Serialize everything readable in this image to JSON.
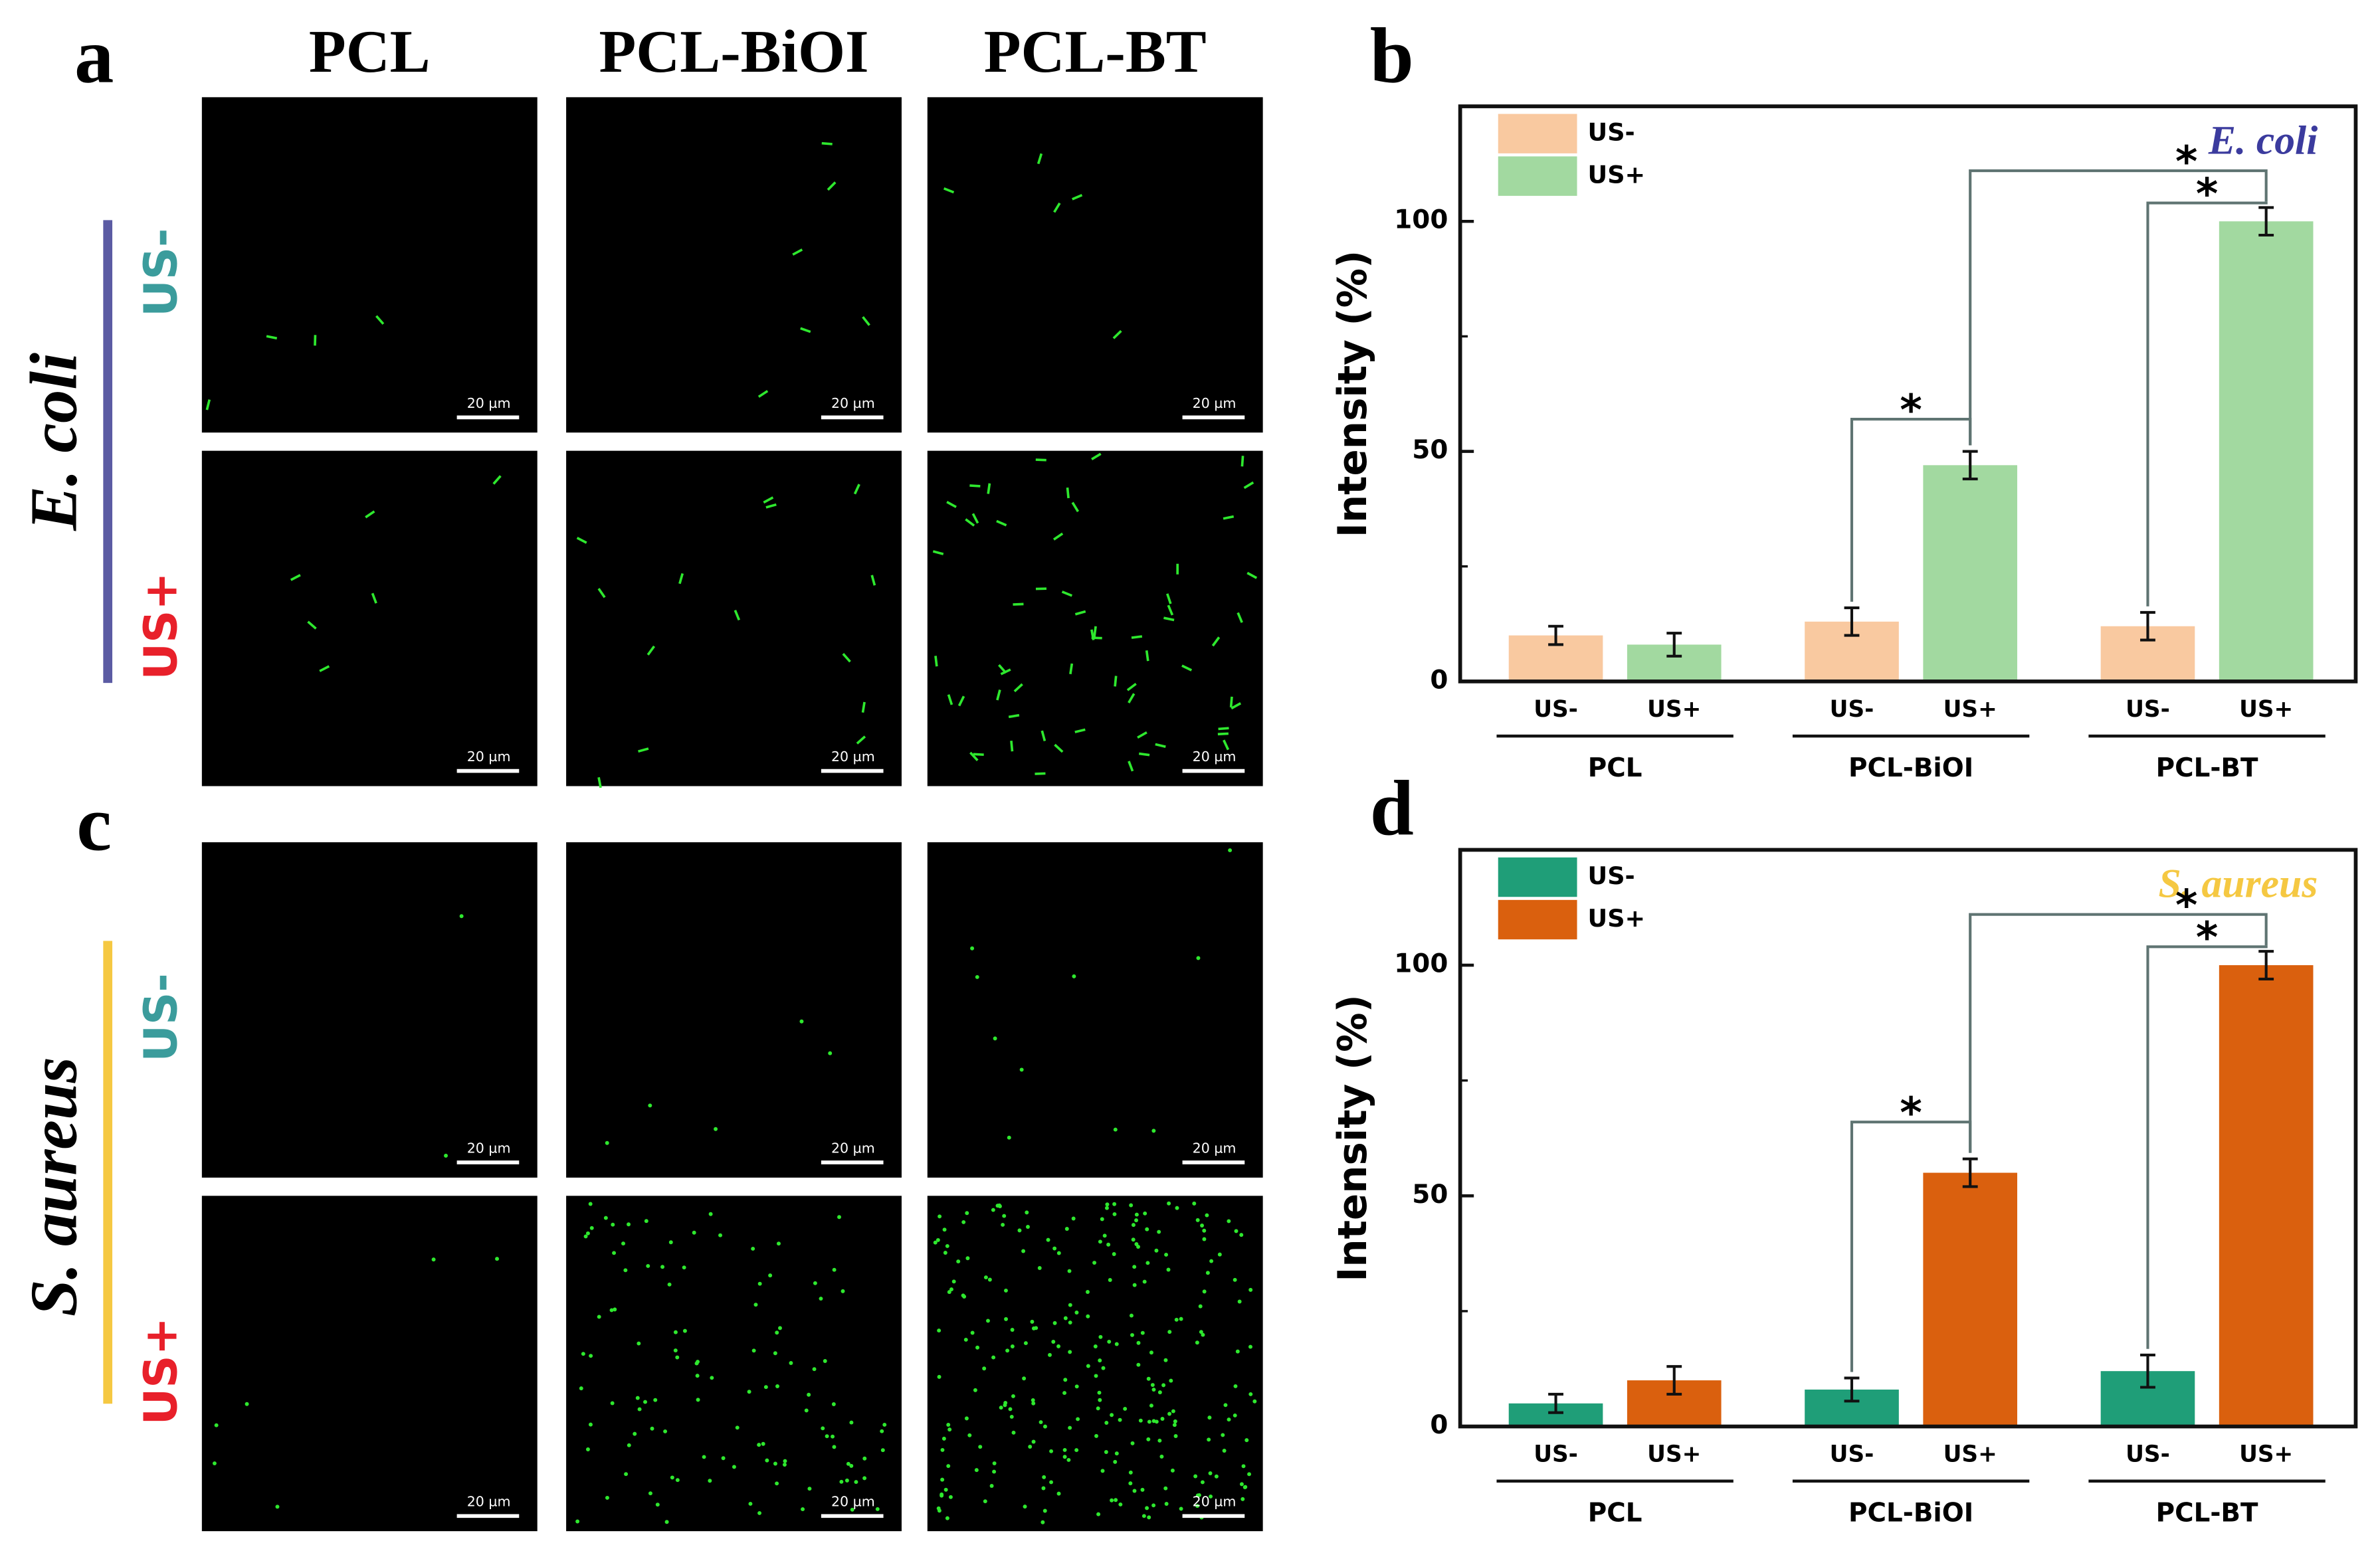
{
  "panel_labels": [
    "a",
    "b",
    "c",
    "d"
  ],
  "micrographs": {
    "columns": [
      "PCL",
      "PCL-BiOI",
      "PCL-BT"
    ],
    "rows": [
      {
        "species": "E. coli",
        "conditions": [
          "US-",
          "US+"
        ]
      },
      {
        "species": "S. aureus",
        "conditions": [
          "US-",
          "US+"
        ]
      }
    ],
    "scale_bar": "20 µm"
  },
  "chart_data": [
    {
      "type": "bar",
      "title": "E. coli",
      "title_color": "#3b3b9e",
      "y_label": "Intensity (%)",
      "categories": [
        "PCL",
        "PCL-BiOI",
        "PCL-BT"
      ],
      "series": [
        {
          "name": "US-",
          "color": "#f9c9a0",
          "values": [
            10,
            13,
            12
          ],
          "errors": [
            2,
            3,
            3
          ]
        },
        {
          "name": "US+",
          "color": "#a2d9a0",
          "values": [
            8,
            47,
            100
          ],
          "errors": [
            2.5,
            3,
            3
          ]
        }
      ],
      "ylim": [
        0,
        125
      ],
      "yticks": [
        0,
        50,
        100
      ],
      "yminor": [
        25,
        75,
        125
      ],
      "legend": "upper left",
      "annotations": [
        "*",
        "*",
        "*"
      ]
    },
    {
      "type": "bar",
      "title": "S. aureus",
      "title_color": "#f5c842",
      "y_label": "Intensity (%)",
      "categories": [
        "PCL",
        "PCL-BiOI",
        "PCL-BT"
      ],
      "series": [
        {
          "name": "US-",
          "color": "#1f9e78",
          "values": [
            5,
            8,
            12
          ],
          "errors": [
            2,
            2.5,
            3.5
          ]
        },
        {
          "name": "US+",
          "color": "#da600e",
          "values": [
            10,
            55,
            100
          ],
          "errors": [
            3,
            3,
            3
          ]
        }
      ],
      "ylim": [
        0,
        125
      ],
      "yticks": [
        0,
        50,
        100
      ],
      "yminor": [
        25,
        75,
        125
      ],
      "legend": "upper left",
      "annotations": [
        "*",
        "*",
        "*"
      ]
    }
  ]
}
